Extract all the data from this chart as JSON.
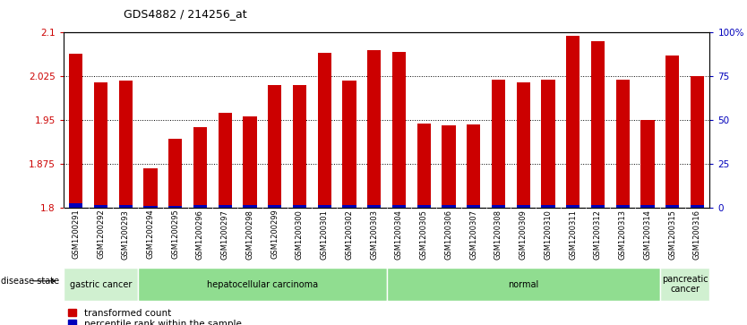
{
  "title": "GDS4882 / 214256_at",
  "samples": [
    "GSM1200291",
    "GSM1200292",
    "GSM1200293",
    "GSM1200294",
    "GSM1200295",
    "GSM1200296",
    "GSM1200297",
    "GSM1200298",
    "GSM1200299",
    "GSM1200300",
    "GSM1200301",
    "GSM1200302",
    "GSM1200303",
    "GSM1200304",
    "GSM1200305",
    "GSM1200306",
    "GSM1200307",
    "GSM1200308",
    "GSM1200309",
    "GSM1200310",
    "GSM1200311",
    "GSM1200312",
    "GSM1200313",
    "GSM1200314",
    "GSM1200315",
    "GSM1200316"
  ],
  "red_values": [
    2.063,
    2.015,
    2.018,
    1.868,
    1.918,
    1.938,
    1.962,
    1.957,
    2.01,
    2.01,
    2.065,
    2.018,
    2.07,
    2.067,
    1.945,
    1.942,
    1.943,
    2.02,
    2.015,
    2.02,
    2.095,
    2.085,
    2.02,
    1.95,
    2.06,
    2.025
  ],
  "blue_percentiles": [
    5,
    3,
    3,
    2,
    2,
    3,
    3,
    3,
    3,
    3,
    3,
    3,
    3,
    3,
    3,
    3,
    3,
    3,
    3,
    3,
    3,
    3,
    3,
    3,
    3,
    3
  ],
  "ylim_left": [
    1.8,
    2.1
  ],
  "ylim_right": [
    0,
    100
  ],
  "yticks_left": [
    1.8,
    1.875,
    1.95,
    2.025,
    2.1
  ],
  "yticks_right": [
    0,
    25,
    50,
    75,
    100
  ],
  "yticklabels_left": [
    "1.8",
    "1.875",
    "1.95",
    "2.025",
    "2.1"
  ],
  "yticklabels_right": [
    "0",
    "25",
    "50",
    "75",
    "100%"
  ],
  "disease_groups": [
    {
      "label": "gastric cancer",
      "start": 0,
      "end": 3,
      "color": "#d0f0d0"
    },
    {
      "label": "hepatocellular carcinoma",
      "start": 3,
      "end": 13,
      "color": "#90dd90"
    },
    {
      "label": "normal",
      "start": 13,
      "end": 24,
      "color": "#90dd90"
    },
    {
      "label": "pancreatic\ncancer",
      "start": 24,
      "end": 26,
      "color": "#d0f0d0"
    }
  ],
  "bar_color_red": "#cc0000",
  "bar_color_blue": "#0000bb",
  "bar_width": 0.55,
  "base_value": 1.8,
  "bg_color": "#ffffff",
  "plot_bg_color": "#ffffff",
  "tick_label_bg": "#e0e0e0",
  "legend_red_label": "transformed count",
  "legend_blue_label": "percentile rank within the sample",
  "disease_state_label": "disease state",
  "left_axis_color": "#cc0000",
  "right_axis_color": "#0000bb",
  "grid_yticks": [
    1.875,
    1.95,
    2.025
  ]
}
